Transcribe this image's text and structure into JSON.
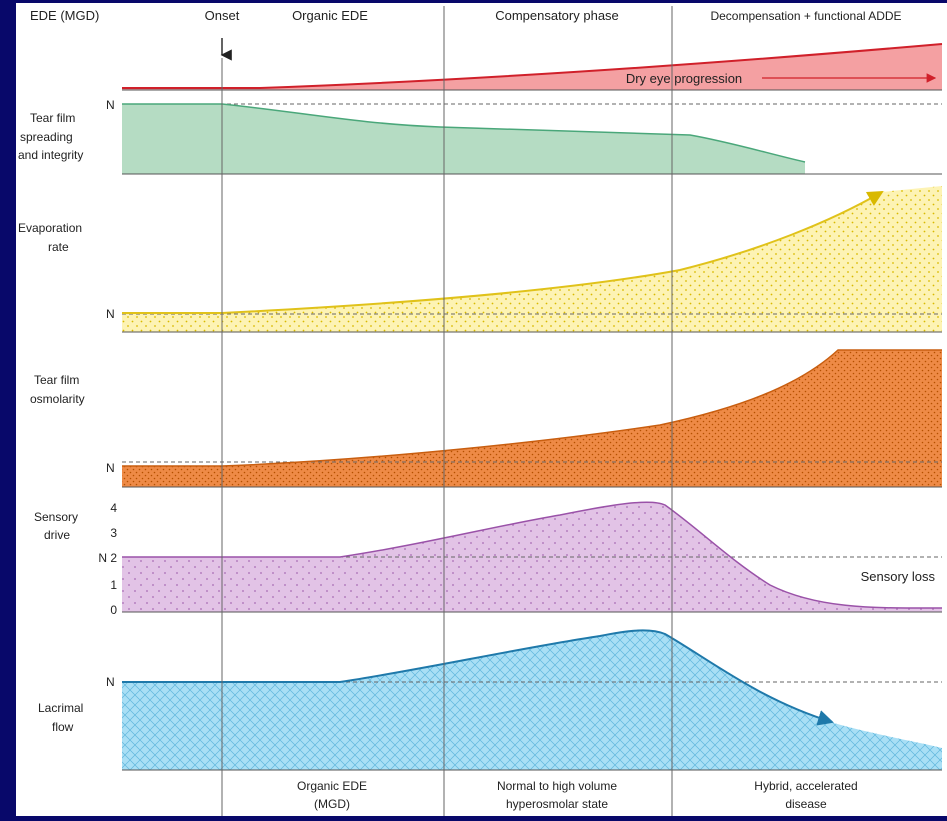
{
  "header": {
    "row_label": "EDE (MGD)",
    "onset": "Onset",
    "phase1": "Organic EDE",
    "phase2": "Compensatory phase",
    "phase3": "Decompensation + functional ADDE"
  },
  "footer": {
    "phase1_line1": "Organic EDE",
    "phase1_line2": "(MGD)",
    "phase2_line1": "Normal to high volume",
    "phase2_line2": "hyperosmolar state",
    "phase3_line1": "Hybrid, accelerated",
    "phase3_line2": "disease"
  },
  "panels": {
    "progression": {
      "label": "Dry eye progression"
    },
    "tear_film": {
      "label_line1": "Tear film",
      "label_line2": "spreading",
      "label_line3": "and integrity",
      "n": "N"
    },
    "evaporation": {
      "label_line1": "Evaporation",
      "label_line2": "rate",
      "n": "N"
    },
    "osmolarity": {
      "label_line1": "Tear film",
      "label_line2": "osmolarity",
      "n": "N"
    },
    "sensory": {
      "label_line1": "Sensory",
      "label_line2": "drive",
      "ticks": [
        "4",
        "3",
        "N  2",
        "1",
        "0"
      ],
      "annotation": "Sensory loss"
    },
    "lacrimal": {
      "label_line1": "Lacrimal",
      "label_line2": "flow",
      "n": "N"
    }
  },
  "colors": {
    "background": "#08086a",
    "panel": "#ffffff",
    "progression_fill": "#f4a0a2",
    "progression_line": "#d0202a",
    "tear_fill": "#b5dcc3",
    "tear_line": "#4aa77a",
    "evaporation_fill": "#fdf3b4",
    "evaporation_line": "#e0c21a",
    "osmolarity_fill": "#ee8a46",
    "osmolarity_line": "#c85e10",
    "sensory_fill": "#e2c3e6",
    "sensory_line": "#9a52a8",
    "lacrimal_fill": "#a9dff5",
    "lacrimal_line": "#1f79aa"
  }
}
